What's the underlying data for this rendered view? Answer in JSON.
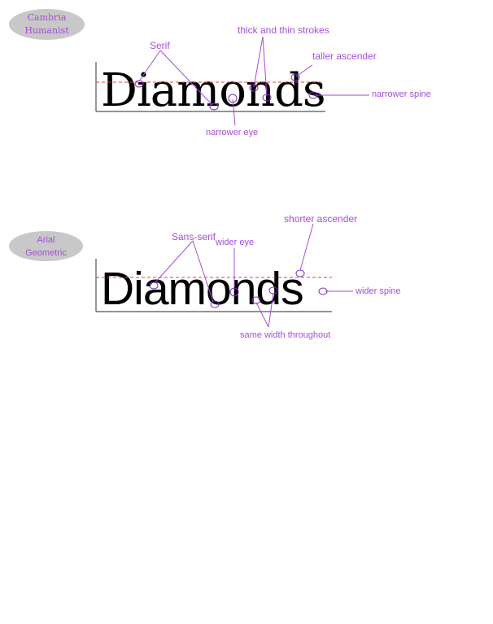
{
  "colors": {
    "accent": "#a64ed6",
    "badge_fill": "#c8c8c8",
    "guide_line": "#e04040",
    "text": "#000000"
  },
  "top_example": {
    "badge_line1": "Cambria",
    "badge_line2": "Humanist",
    "word": "Diamonds",
    "labels": {
      "serif": "Serif",
      "thick_thin": "thick and thin strokes",
      "taller_ascender": "taller ascender",
      "narrower_spine": "narrower spine",
      "narrower_eye": "narrower eye"
    }
  },
  "bottom_example": {
    "badge_line1": "Arial",
    "badge_line2": "Geometric",
    "word": "Diamonds",
    "labels": {
      "sans_serif": "Sans-serif",
      "wider_eye": "wider eye",
      "shorter_ascender": "shorter ascender",
      "wider_spine": "wider spine",
      "same_width": "same width throughout"
    }
  }
}
